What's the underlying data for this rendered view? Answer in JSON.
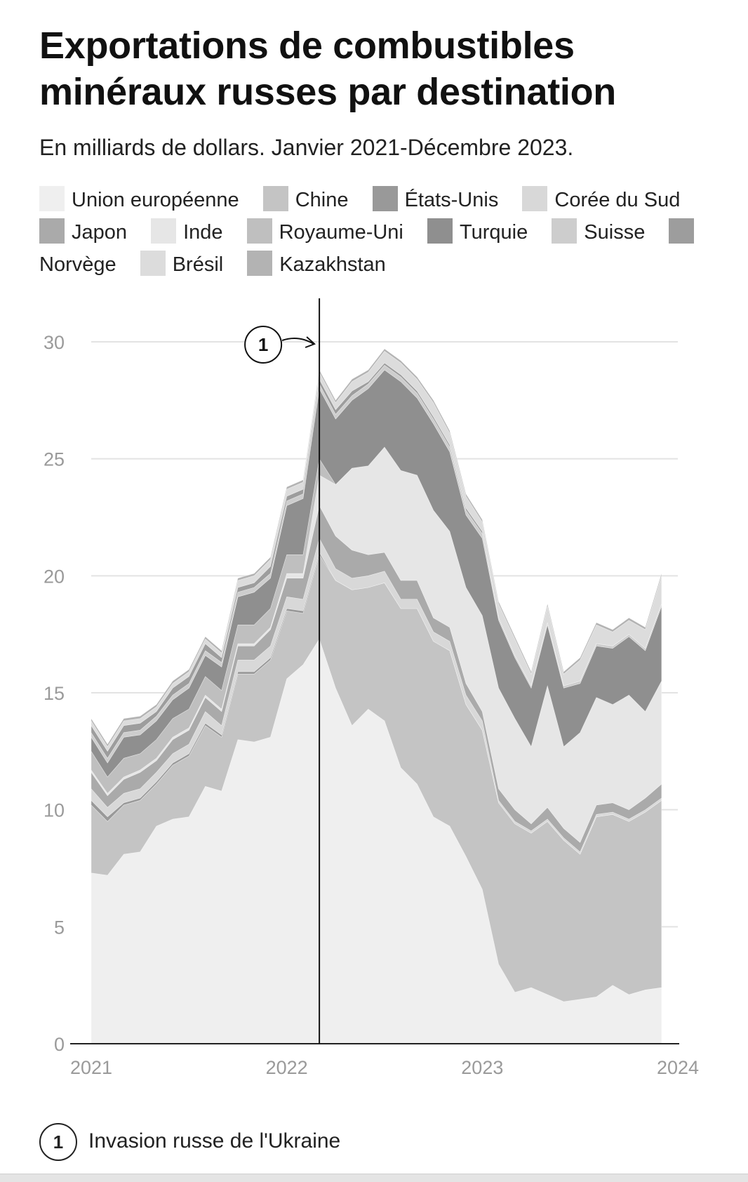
{
  "title": "Exportations de combustibles minéraux russes par destination",
  "subtitle": "En milliards de dollars. Janvier 2021-Décembre 2023.",
  "annotation": {
    "number": "1",
    "text": "Invasion russe de l'Ukraine",
    "date": "2022-03"
  },
  "chart_data": {
    "type": "area",
    "stacked": true,
    "title": "Exportations de combustibles minéraux russes par destination",
    "subtitle": "En milliards de dollars. Janvier 2021-Décembre 2023.",
    "xlabel": "",
    "ylabel": "",
    "x": [
      "2021-01",
      "2021-02",
      "2021-03",
      "2021-04",
      "2021-05",
      "2021-06",
      "2021-07",
      "2021-08",
      "2021-09",
      "2021-10",
      "2021-11",
      "2021-12",
      "2022-01",
      "2022-02",
      "2022-03",
      "2022-04",
      "2022-05",
      "2022-06",
      "2022-07",
      "2022-08",
      "2022-09",
      "2022-10",
      "2022-11",
      "2022-12",
      "2023-01",
      "2023-02",
      "2023-03",
      "2023-04",
      "2023-05",
      "2023-06",
      "2023-07",
      "2023-08",
      "2023-09",
      "2023-10",
      "2023-11",
      "2023-12"
    ],
    "x_ticks": [
      "2021",
      "2022",
      "2023",
      "2024"
    ],
    "y_ticks": [
      0,
      5,
      10,
      15,
      20,
      25,
      30
    ],
    "ylim": [
      0,
      32
    ],
    "grid": true,
    "legend_position": "top",
    "series": [
      {
        "name": "Union européenne",
        "color": "#efefef",
        "values": [
          7.3,
          7.2,
          8.1,
          8.2,
          9.3,
          9.6,
          9.7,
          11.0,
          10.8,
          13.0,
          12.9,
          13.1,
          15.6,
          16.2,
          17.3,
          15.2,
          13.6,
          14.3,
          13.8,
          11.8,
          11.1,
          9.7,
          9.3,
          8.0,
          6.6,
          3.4,
          2.2,
          2.4,
          2.1,
          1.8,
          1.9,
          2.0,
          2.5,
          2.1,
          2.3,
          2.4
        ]
      },
      {
        "name": "Chine",
        "color": "#c4c4c4",
        "values": [
          2.9,
          2.3,
          2.1,
          2.2,
          1.8,
          2.3,
          2.6,
          2.6,
          2.3,
          2.8,
          2.9,
          3.3,
          2.9,
          2.2,
          3.6,
          4.6,
          5.8,
          5.2,
          5.9,
          6.8,
          7.5,
          7.5,
          7.5,
          6.5,
          6.8,
          6.9,
          7.2,
          6.6,
          7.4,
          6.9,
          6.2,
          7.7,
          7.3,
          7.4,
          7.6,
          8.0
        ]
      },
      {
        "name": "États-Unis",
        "color": "#999999",
        "values": [
          0.2,
          0.2,
          0.1,
          0.1,
          0.1,
          0.1,
          0.1,
          0.1,
          0.1,
          0.1,
          0.1,
          0.1,
          0.1,
          0.1,
          0.1,
          0,
          0,
          0,
          0,
          0,
          0,
          0,
          0,
          0,
          0,
          0,
          0,
          0,
          0,
          0,
          0,
          0,
          0,
          0,
          0,
          0
        ]
      },
      {
        "name": "Corée du Sud",
        "color": "#d8d8d8",
        "values": [
          0.5,
          0.4,
          0.4,
          0.4,
          0.4,
          0.4,
          0.4,
          0.5,
          0.4,
          0.5,
          0.5,
          0.5,
          0.5,
          0.5,
          0.6,
          0.5,
          0.5,
          0.5,
          0.5,
          0.4,
          0.4,
          0.4,
          0.4,
          0.4,
          0.4,
          0.1,
          0.1,
          0.1,
          0.1,
          0.1,
          0.1,
          0.1,
          0.1,
          0.1,
          0.1,
          0.1
        ]
      },
      {
        "name": "Japon",
        "color": "#aaaaaa",
        "values": [
          0.7,
          0.5,
          0.6,
          0.7,
          0.5,
          0.6,
          0.6,
          0.6,
          0.6,
          0.6,
          0.6,
          0.7,
          0.8,
          0.9,
          1.4,
          1.4,
          1.2,
          0.9,
          0.8,
          0.8,
          0.8,
          0.6,
          0.6,
          0.5,
          0.4,
          0.5,
          0.5,
          0.3,
          0.5,
          0.4,
          0.4,
          0.4,
          0.4,
          0.4,
          0.5,
          0.6
        ]
      },
      {
        "name": "Inde",
        "color": "#e6e6e6",
        "values": [
          0.1,
          0.1,
          0.1,
          0.1,
          0.1,
          0.1,
          0.1,
          0.1,
          0.1,
          0.1,
          0.1,
          0.1,
          0.2,
          0.2,
          1.3,
          2.2,
          3.5,
          3.8,
          4.5,
          4.7,
          4.5,
          4.6,
          4.1,
          4.1,
          4.1,
          4.3,
          3.9,
          3.3,
          5.2,
          3.5,
          4.7,
          4.6,
          4.2,
          4.9,
          3.7,
          4.4
        ]
      },
      {
        "name": "Royaume-Uni",
        "color": "#bfbfbf",
        "values": [
          0.8,
          0.7,
          0.8,
          0.7,
          0.8,
          0.8,
          0.8,
          0.8,
          0.8,
          0.8,
          0.8,
          0.8,
          0.8,
          0.8,
          0.7,
          0,
          0,
          0,
          0,
          0,
          0,
          0,
          0,
          0,
          0,
          0,
          0,
          0,
          0,
          0,
          0,
          0,
          0,
          0,
          0,
          0
        ]
      },
      {
        "name": "Turquie",
        "color": "#8f8f8f",
        "values": [
          0.6,
          0.6,
          0.9,
          0.8,
          0.8,
          0.8,
          0.9,
          0.9,
          1.0,
          1.2,
          1.4,
          1.3,
          2.1,
          2.4,
          3.0,
          2.8,
          2.9,
          3.3,
          3.3,
          3.8,
          3.3,
          3.7,
          3.4,
          3.1,
          3.3,
          2.9,
          2.6,
          2.5,
          2.6,
          2.5,
          2.1,
          2.2,
          2.4,
          2.5,
          2.6,
          3.2
        ]
      },
      {
        "name": "Suisse",
        "color": "#cdcdcd",
        "values": [
          0.2,
          0.2,
          0.2,
          0.2,
          0.2,
          0.2,
          0.2,
          0.2,
          0.2,
          0.2,
          0.2,
          0.2,
          0.2,
          0.2,
          0.2,
          0.2,
          0.2,
          0.2,
          0.2,
          0.2,
          0.2,
          0.2,
          0.2,
          0.2,
          0.2,
          0.1,
          0.1,
          0.1,
          0.1,
          0.1,
          0.1,
          0.1,
          0.1,
          0.1,
          0.1,
          0.1
        ]
      },
      {
        "name": "Norvège",
        "color": "#9d9d9d",
        "values": [
          0.3,
          0.3,
          0.3,
          0.3,
          0.2,
          0.3,
          0.3,
          0.3,
          0.2,
          0.2,
          0.2,
          0.3,
          0.2,
          0.2,
          0.2,
          0.2,
          0.2,
          0.1,
          0.1,
          0.1,
          0.1,
          0.1,
          0.1,
          0.1,
          0.1,
          0,
          0,
          0,
          0,
          0,
          0,
          0,
          0,
          0,
          0,
          0
        ]
      },
      {
        "name": "Brésil",
        "color": "#dcdcdc",
        "values": [
          0.2,
          0.2,
          0.2,
          0.2,
          0.2,
          0.2,
          0.2,
          0.2,
          0.2,
          0.3,
          0.3,
          0.3,
          0.3,
          0.3,
          0.3,
          0.3,
          0.4,
          0.4,
          0.5,
          0.5,
          0.5,
          0.6,
          0.5,
          0.5,
          0.4,
          0.6,
          0.7,
          0.5,
          0.7,
          0.5,
          0.9,
          0.8,
          0.6,
          0.6,
          0.8,
          1.2
        ]
      },
      {
        "name": "Kazakhstan",
        "color": "#b3b3b3",
        "values": [
          0.1,
          0.1,
          0.1,
          0.1,
          0.1,
          0.1,
          0.1,
          0.1,
          0.1,
          0.1,
          0.1,
          0.1,
          0.1,
          0.1,
          0.1,
          0.1,
          0.1,
          0.1,
          0.1,
          0.1,
          0.1,
          0.1,
          0.1,
          0.1,
          0.1,
          0.1,
          0.1,
          0.1,
          0.1,
          0.1,
          0.1,
          0.1,
          0.1,
          0.1,
          0.1,
          0.1
        ]
      }
    ]
  }
}
